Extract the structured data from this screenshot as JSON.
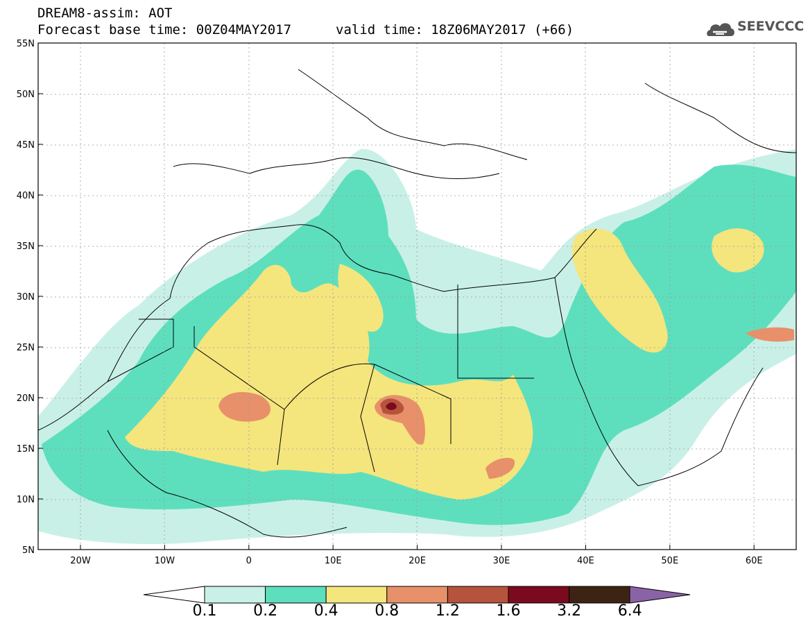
{
  "header": {
    "line1": "DREAM8-assim: AOT",
    "line2_left": "Forecast base time: 00Z04MAY2017",
    "line2_right": "valid time: 18Z06MAY2017 (+66)",
    "logo_text": "SEEVCCC"
  },
  "map": {
    "lat_labels": [
      "55N",
      "50N",
      "45N",
      "40N",
      "35N",
      "30N",
      "25N",
      "20N",
      "15N",
      "10N",
      "5N"
    ],
    "lon_labels": [
      "20W",
      "10W",
      "0",
      "10E",
      "20E",
      "30E",
      "40E",
      "50E",
      "60E"
    ]
  },
  "colorbar": {
    "colors": [
      "#c9f0e7",
      "#5ddfbe",
      "#f5e57d",
      "#e8906a",
      "#b6533c",
      "#7b0a1e",
      "#3d2314",
      "#8a63a6"
    ],
    "labels": [
      "0.1",
      "0.2",
      "0.4",
      "0.8",
      "1.2",
      "1.6",
      "3.2",
      "6.4"
    ]
  }
}
